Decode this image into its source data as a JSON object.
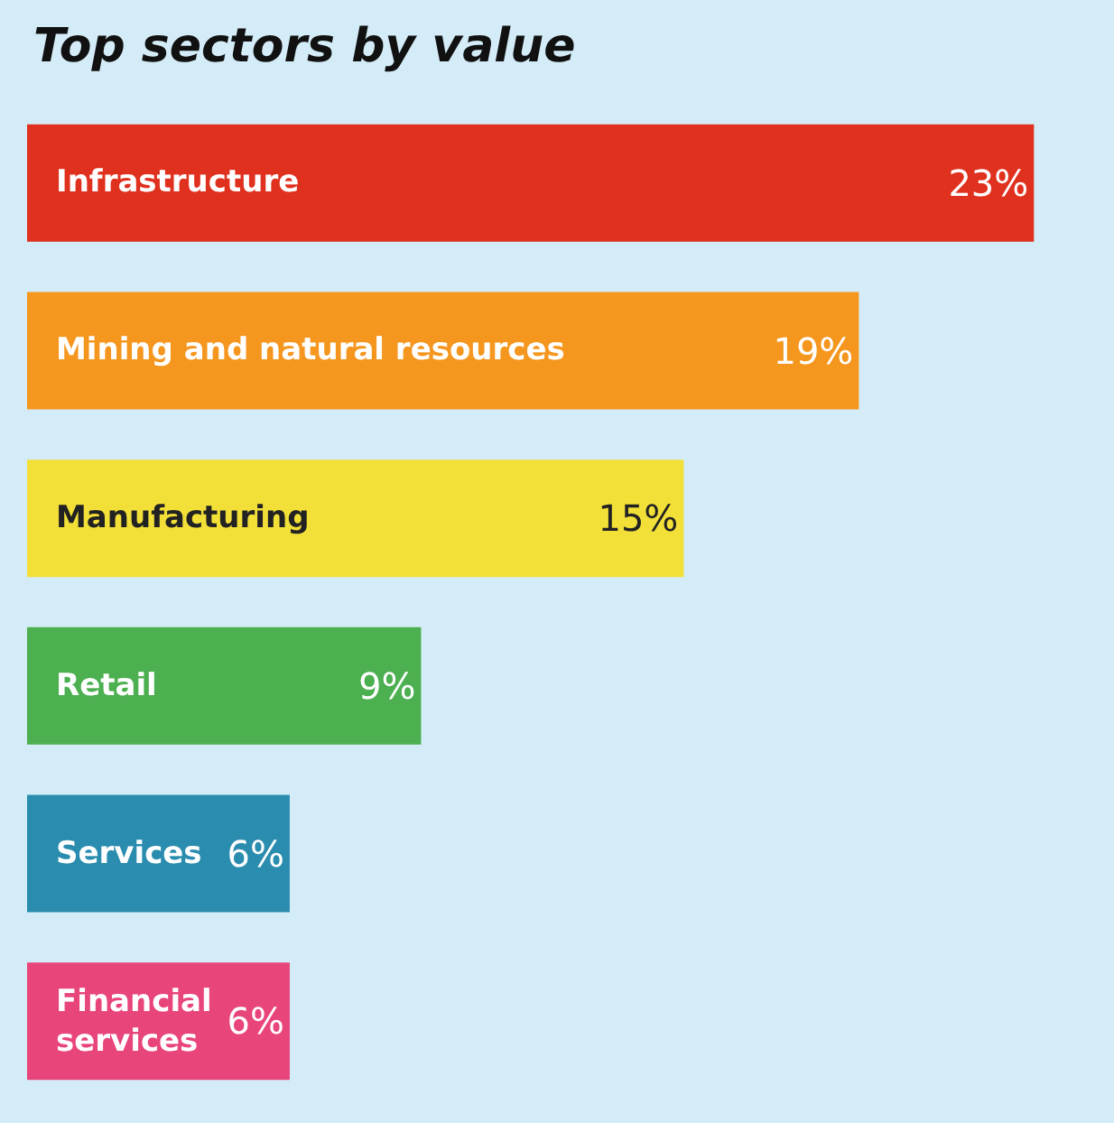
{
  "chart_data": {
    "type": "bar",
    "orientation": "horizontal",
    "title": "Top sectors by value",
    "categories": [
      "Infrastructure",
      "Mining and natural resources",
      "Manufacturing",
      "Retail",
      "Services",
      "Financial services"
    ],
    "values": [
      23,
      19,
      15,
      9,
      6,
      6
    ],
    "colors": [
      "#e0301e",
      "#f5961e",
      "#f2e038",
      "#4caf50",
      "#2a8cae",
      "#e8457a"
    ],
    "value_labels": [
      "23%",
      "19%",
      "15%",
      "9%",
      "6%",
      "6%"
    ]
  }
}
